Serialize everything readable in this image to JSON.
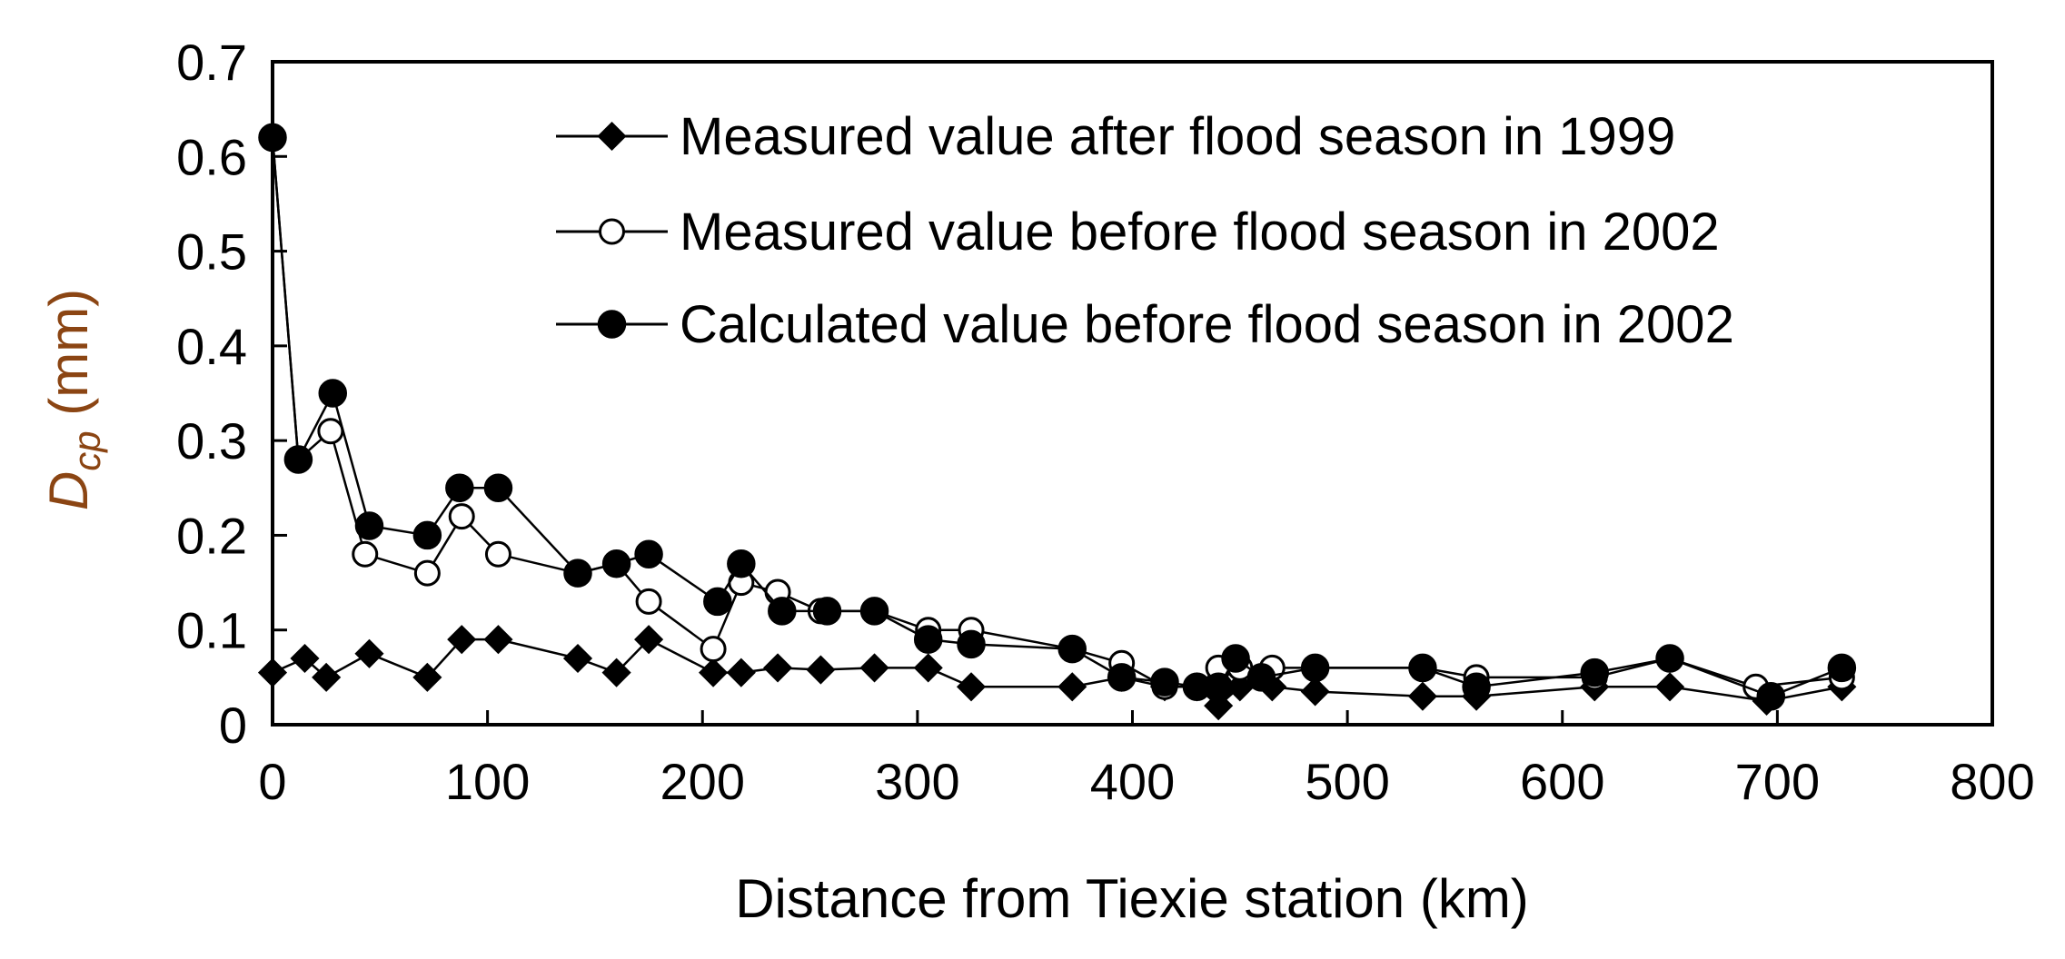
{
  "chart_data": {
    "type": "line",
    "title": "",
    "xlabel": "Distance from Tiexie station (km)",
    "ylabel_main": "D",
    "ylabel_sub": "cp",
    "ylabel_unit": " (mm)",
    "xlim": [
      0,
      800
    ],
    "ylim": [
      0,
      0.7
    ],
    "xticks": [
      "0",
      "100",
      "200",
      "300",
      "400",
      "500",
      "600",
      "700",
      "800"
    ],
    "yticks": [
      "0",
      "0.1",
      "0.2",
      "0.3",
      "0.4",
      "0.5",
      "0.6",
      "0.7"
    ],
    "grid": false,
    "legend_position": "top-right",
    "series": [
      {
        "name": "Measured value after flood season in 1999",
        "marker": "diamond",
        "x": [
          0,
          15,
          25,
          45,
          72,
          88,
          105,
          142,
          160,
          175,
          205,
          218,
          235,
          255,
          280,
          305,
          325,
          372,
          395,
          415,
          430,
          440,
          450,
          465,
          485,
          535,
          560,
          615,
          650,
          695,
          730
        ],
        "y": [
          0.055,
          0.07,
          0.05,
          0.075,
          0.05,
          0.09,
          0.09,
          0.07,
          0.055,
          0.09,
          0.055,
          0.055,
          0.06,
          0.058,
          0.06,
          0.06,
          0.04,
          0.04,
          0.05,
          0.04,
          0.04,
          0.02,
          0.04,
          0.04,
          0.035,
          0.03,
          0.03,
          0.04,
          0.04,
          0.025,
          0.04
        ]
      },
      {
        "name": "Measured value before flood season in 2002",
        "marker": "circle-open",
        "x": [
          0,
          12,
          27,
          43,
          72,
          88,
          105,
          142,
          160,
          175,
          205,
          218,
          235,
          255,
          280,
          305,
          325,
          372,
          395,
          415,
          430,
          440,
          450,
          465,
          485,
          535,
          560,
          615,
          650,
          690,
          730
        ],
        "y": [
          0.62,
          0.28,
          0.31,
          0.18,
          0.16,
          0.22,
          0.18,
          0.16,
          0.17,
          0.13,
          0.08,
          0.15,
          0.14,
          0.12,
          0.12,
          0.1,
          0.1,
          0.08,
          0.065,
          0.04,
          0.04,
          0.06,
          0.06,
          0.06,
          0.06,
          0.06,
          0.05,
          0.05,
          0.07,
          0.04,
          0.05
        ]
      },
      {
        "name": "Calculated value before flood season in 2002",
        "marker": "circle-filled",
        "x": [
          0,
          12,
          28,
          45,
          72,
          87,
          105,
          142,
          160,
          175,
          207,
          218,
          237,
          258,
          280,
          305,
          325,
          372,
          395,
          415,
          430,
          440,
          448,
          460,
          485,
          535,
          560,
          615,
          650,
          697,
          730
        ],
        "y": [
          0.62,
          0.28,
          0.35,
          0.21,
          0.2,
          0.25,
          0.25,
          0.16,
          0.17,
          0.18,
          0.13,
          0.17,
          0.12,
          0.12,
          0.12,
          0.09,
          0.085,
          0.08,
          0.05,
          0.045,
          0.04,
          0.04,
          0.07,
          0.05,
          0.06,
          0.06,
          0.04,
          0.055,
          0.07,
          0.03,
          0.06
        ]
      }
    ]
  }
}
